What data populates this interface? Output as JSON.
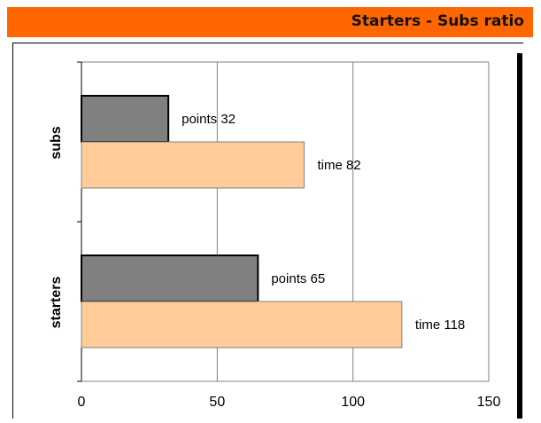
{
  "colors": {
    "header": "#ff6600",
    "points_bar": "#808080",
    "time_bar": "#ffcc99"
  },
  "chart_data": {
    "type": "bar",
    "orientation": "horizontal",
    "title": "Starters - Subs ratio",
    "categories": [
      "subs",
      "starters"
    ],
    "series": [
      {
        "key": "points",
        "values": [
          32,
          65
        ],
        "labels": [
          "points 32",
          "points 65"
        ]
      },
      {
        "key": "time",
        "values": [
          82,
          118
        ],
        "labels": [
          "time 82",
          "time 118"
        ]
      }
    ],
    "xlim": [
      0,
      150
    ],
    "xticks": [
      0,
      50,
      100,
      150
    ],
    "grid": "vertical",
    "legend": "none"
  }
}
